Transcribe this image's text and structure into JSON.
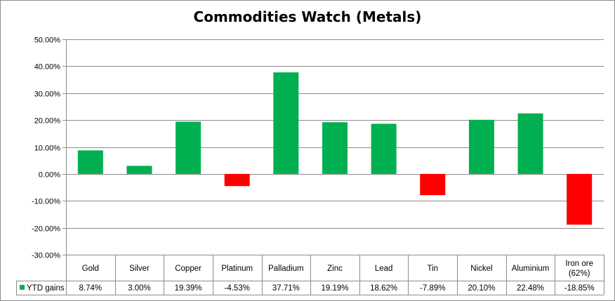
{
  "chart_data": {
    "type": "bar",
    "title": "Commodities Watch (Metals)",
    "categories": [
      "Gold",
      "Silver",
      "Copper",
      "Platinum",
      "Palladium",
      "Zinc",
      "Lead",
      "Tin",
      "Nickel",
      "Aluminium",
      "Iron ore (62%)"
    ],
    "series": [
      {
        "name": "YTD gains",
        "values": [
          8.74,
          3.0,
          19.39,
          -4.53,
          37.71,
          19.19,
          18.62,
          -7.89,
          20.1,
          22.48,
          -18.85
        ],
        "labels": [
          "8.74%",
          "3.00%",
          "19.39%",
          "-4.53%",
          "37.71%",
          "19.19%",
          "18.62%",
          "-7.89%",
          "20.10%",
          "22.48%",
          "-18.85%"
        ]
      }
    ],
    "yticks": [
      "50.00%",
      "40.00%",
      "30.00%",
      "20.00%",
      "10.00%",
      "0.00%",
      "-10.00%",
      "-20.00%",
      "-30.00%"
    ],
    "ylim": [
      -30,
      50
    ],
    "grid": true,
    "data_table": true,
    "legend": "data table",
    "colors": {
      "positive": "#00b050",
      "negative": "#ff0000"
    }
  }
}
